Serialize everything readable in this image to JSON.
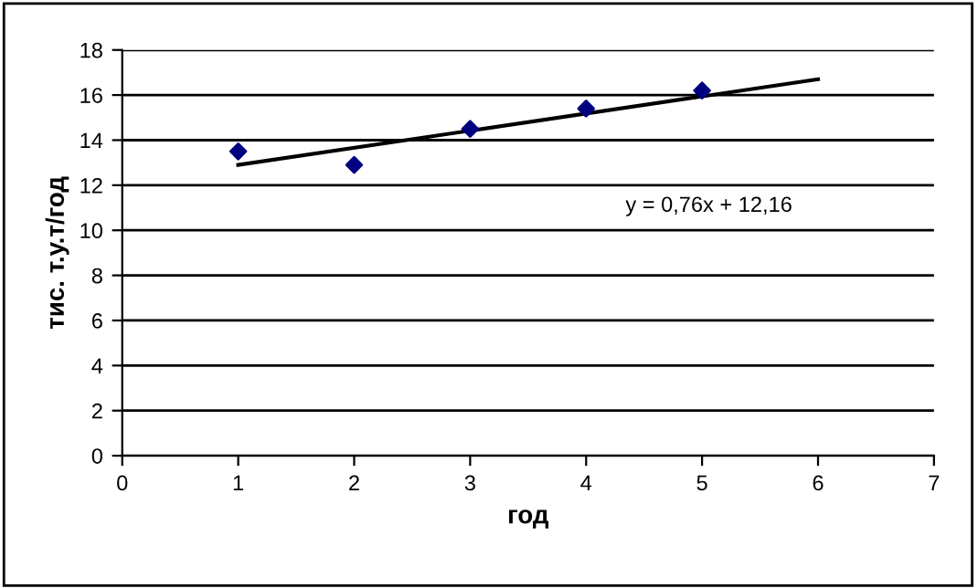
{
  "chart_data": {
    "type": "scatter",
    "xlabel": "год",
    "ylabel": "тис. т.у.т/год",
    "series": [
      {
        "color": "#000080",
        "x": [
          1,
          2,
          3,
          4,
          5
        ],
        "values": [
          13.5,
          12.9,
          14.5,
          15.4,
          16.2
        ],
        "marker": "diamond"
      },
      {
        "type": "line",
        "color": "#000000",
        "x": [
          1,
          6
        ],
        "values": [
          12.9,
          16.7
        ],
        "line_style": "solid"
      }
    ],
    "annotations": [
      "y = 0,76x + 12,16"
    ],
    "xlim": [
      0,
      7
    ],
    "xticks": [
      0,
      1,
      2,
      3,
      4,
      5,
      6,
      7
    ],
    "ylim": [
      0,
      18
    ],
    "yticks": [
      0,
      2,
      4,
      6,
      8,
      10,
      12,
      14,
      16,
      18
    ],
    "grid": "y",
    "legend": false
  }
}
